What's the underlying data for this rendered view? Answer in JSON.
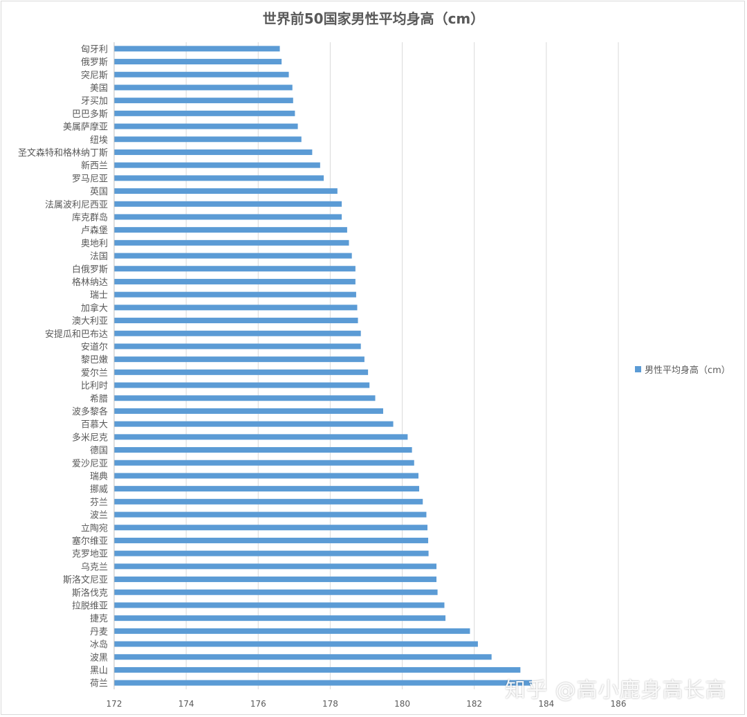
{
  "chart_data": {
    "type": "bar",
    "orientation": "horizontal",
    "title": "世界前50国家男性平均身高（cm）",
    "xlim": [
      172,
      186
    ],
    "xticks": [
      172,
      174,
      176,
      178,
      180,
      182,
      184,
      186
    ],
    "grid": true,
    "legend": "right",
    "series": [
      {
        "name": "男性平均身高（cm）",
        "color": "#5b9bd5",
        "categories": [
          "匈牙利",
          "俄罗斯",
          "突尼斯",
          "美国",
          "牙买加",
          "巴巴多斯",
          "美属萨摩亚",
          "纽埃",
          "圣文森特和格林纳丁斯",
          "新西兰",
          "罗马尼亚",
          "英国",
          "法属波利尼西亚",
          "库克群岛",
          "卢森堡",
          "奥地利",
          "法国",
          "白俄罗斯",
          "格林纳达",
          "瑞士",
          "加拿大",
          "澳大利亚",
          "安提瓜和巴布达",
          "安道尔",
          "黎巴嫩",
          "爱尔兰",
          "比利时",
          "希腊",
          "波多黎各",
          "百慕大",
          "多米尼克",
          "德国",
          "爱沙尼亚",
          "瑞典",
          "挪威",
          "芬兰",
          "波兰",
          "立陶宛",
          "塞尔维亚",
          "克罗地亚",
          "乌克兰",
          "斯洛文尼亚",
          "斯洛伐克",
          "拉脱维亚",
          "捷克",
          "丹麦",
          "冰岛",
          "波黑",
          "黑山",
          "荷兰"
        ],
        "values": [
          176.6,
          176.65,
          176.85,
          176.95,
          176.97,
          177.02,
          177.1,
          177.2,
          177.5,
          177.72,
          177.82,
          178.2,
          178.32,
          178.32,
          178.47,
          178.52,
          178.6,
          178.7,
          178.7,
          178.72,
          178.75,
          178.77,
          178.85,
          178.85,
          178.95,
          179.05,
          179.09,
          179.25,
          179.47,
          179.75,
          180.15,
          180.27,
          180.33,
          180.45,
          180.47,
          180.57,
          180.67,
          180.7,
          180.72,
          180.73,
          180.95,
          180.95,
          180.98,
          181.17,
          181.2,
          181.88,
          182.1,
          182.48,
          183.28,
          183.6
        ]
      }
    ]
  },
  "watermark": "知乎 @高小鹿身高长高"
}
